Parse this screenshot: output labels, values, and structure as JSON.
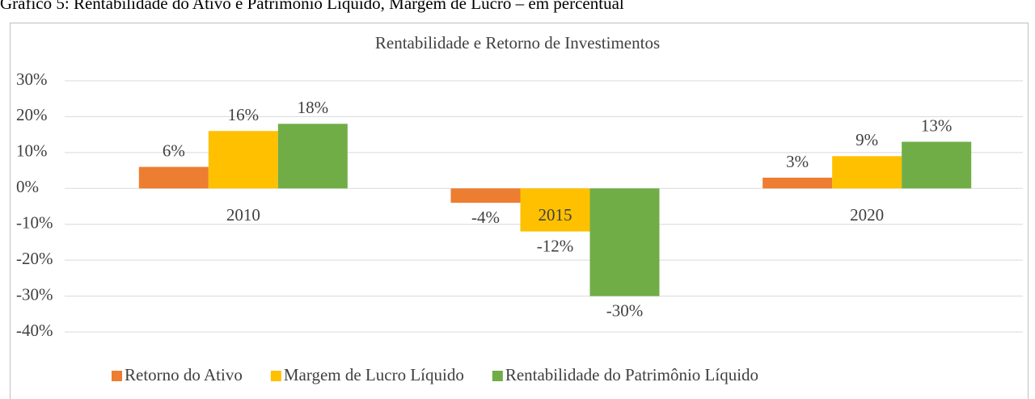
{
  "caption": "Gráfico 5: Rentabilidade do Ativo e Patrimônio Líquido, Margem de Lucro – em percentual",
  "chart_data": {
    "type": "bar",
    "title": "Rentabilidade e Retorno de Investimentos",
    "categories": [
      "2010",
      "2015",
      "2020"
    ],
    "series": [
      {
        "name": "Retorno do Ativo",
        "color": "#ed7d31",
        "values": [
          6,
          -4,
          3
        ],
        "value_labels": [
          "6%",
          "-4%",
          "3%"
        ]
      },
      {
        "name": "Margem de Lucro Líquido",
        "color": "#ffc000",
        "values": [
          16,
          -12,
          9
        ],
        "value_labels": [
          "16%",
          "-12%",
          "9%"
        ]
      },
      {
        "name": "Rentabilidade do Patrimônio Líquido",
        "color": "#70ad47",
        "values": [
          18,
          -30,
          13
        ],
        "value_labels": [
          "18%",
          "-30%",
          "13%"
        ]
      }
    ],
    "ylim": [
      -40,
      30
    ],
    "yticks": [
      {
        "value": -40,
        "label": "-40%"
      },
      {
        "value": -30,
        "label": "-30%"
      },
      {
        "value": -20,
        "label": "-20%"
      },
      {
        "value": -10,
        "label": "-10%"
      },
      {
        "value": 0,
        "label": "0%"
      },
      {
        "value": 10,
        "label": "10%"
      },
      {
        "value": 20,
        "label": "20%"
      },
      {
        "value": 30,
        "label": "30%"
      }
    ],
    "grid": true,
    "legend": "bottom"
  }
}
